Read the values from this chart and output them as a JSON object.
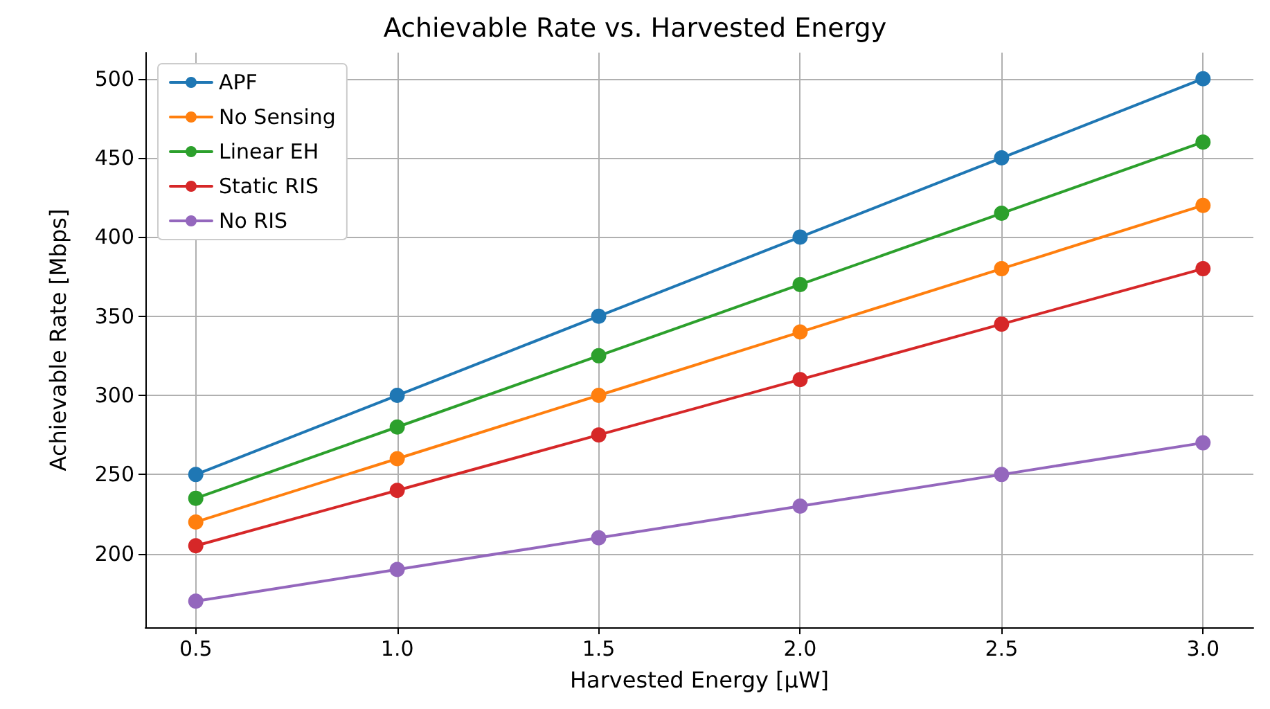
{
  "chart_data": {
    "type": "line",
    "title": "Achievable Rate vs. Harvested Energy",
    "xlabel": "Harvested Energy [μW]",
    "ylabel": "Achievable Rate [Mbps]",
    "x": [
      0.5,
      1.0,
      1.5,
      2.0,
      2.5,
      3.0
    ],
    "series": [
      {
        "name": "APF",
        "color": "#1f77b4",
        "values": [
          250,
          300,
          350,
          400,
          450,
          500
        ]
      },
      {
        "name": "No Sensing",
        "color": "#ff7f0e",
        "values": [
          220,
          260,
          300,
          340,
          380,
          420
        ]
      },
      {
        "name": "Linear EH",
        "color": "#2ca02c",
        "values": [
          235,
          280,
          325,
          370,
          415,
          460
        ]
      },
      {
        "name": "Static RIS",
        "color": "#d62728",
        "values": [
          205,
          240,
          275,
          310,
          345,
          380
        ]
      },
      {
        "name": "No RIS",
        "color": "#9467bd",
        "values": [
          170,
          190,
          210,
          230,
          250,
          270
        ]
      }
    ],
    "xlim": [
      0.375,
      3.125
    ],
    "ylim": [
      153.5,
      516.5
    ],
    "xticks": [
      0.5,
      {
        "value": 1.0,
        "label": "1.0"
      },
      1.5,
      {
        "value": 2.0,
        "label": "2.0"
      },
      2.5,
      {
        "value": 3.0,
        "label": "3.0"
      }
    ],
    "yticks": [
      200,
      250,
      300,
      350,
      400,
      450,
      500
    ],
    "grid": true,
    "legend": "top left",
    "marker": "circle",
    "line_style": "solid"
  }
}
